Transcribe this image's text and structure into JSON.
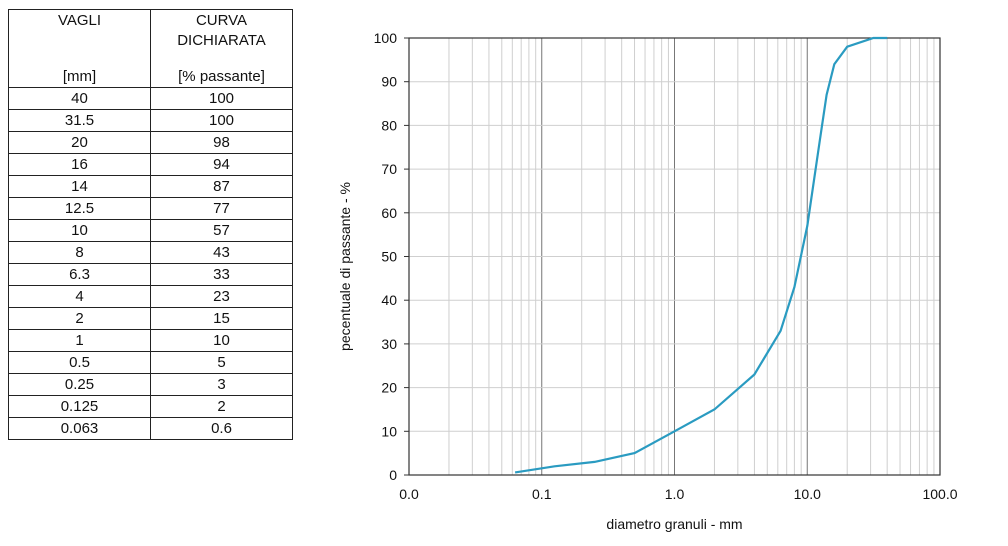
{
  "table": {
    "headers": [
      {
        "title": "VAGLI",
        "unit": "[mm]"
      },
      {
        "title": "CURVA DICHIARATA",
        "unit": "[% passante]"
      }
    ],
    "rows": [
      [
        "40",
        "100"
      ],
      [
        "31.5",
        "100"
      ],
      [
        "20",
        "98"
      ],
      [
        "16",
        "94"
      ],
      [
        "14",
        "87"
      ],
      [
        "12.5",
        "77"
      ],
      [
        "10",
        "57"
      ],
      [
        "8",
        "43"
      ],
      [
        "6.3",
        "33"
      ],
      [
        "4",
        "23"
      ],
      [
        "2",
        "15"
      ],
      [
        "1",
        "10"
      ],
      [
        "0.5",
        "5"
      ],
      [
        "0.25",
        "3"
      ],
      [
        "0.125",
        "2"
      ],
      [
        "0.063",
        "0.6"
      ]
    ]
  },
  "chart_data": {
    "type": "line",
    "xscale": "log",
    "xlim": [
      0.01,
      100
    ],
    "ylim": [
      0,
      100
    ],
    "grid": true,
    "xlabel": "diametro granuli - mm",
    "ylabel": "pecentuale di passante - %",
    "x_ticks": [
      "0.0",
      "0.1",
      "1.0",
      "10.0",
      "100.0"
    ],
    "y_ticks": [
      "0",
      "10",
      "20",
      "30",
      "40",
      "50",
      "60",
      "70",
      "80",
      "90",
      "100"
    ],
    "line_color": "#2a9bc1",
    "series": [
      {
        "x": [
          0.063,
          0.125,
          0.25,
          0.5,
          1,
          2,
          4,
          6.3,
          8,
          10,
          12.5,
          14,
          16,
          20,
          31.5,
          40
        ],
        "y": [
          0.6,
          2,
          3,
          5,
          10,
          15,
          23,
          33,
          43,
          57,
          77,
          87,
          94,
          98,
          100,
          100
        ]
      }
    ]
  }
}
